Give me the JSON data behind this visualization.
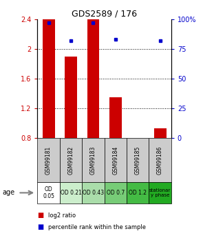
{
  "title": "GDS2589 / 176",
  "samples": [
    "GSM99181",
    "GSM99182",
    "GSM99183",
    "GSM99184",
    "GSM99185",
    "GSM99186"
  ],
  "log2_ratios": [
    2.4,
    1.9,
    2.4,
    1.35,
    0.8,
    0.93
  ],
  "percentile_ranks": [
    97,
    82,
    97,
    83,
    0,
    82
  ],
  "age_labels": [
    "OD\n0.05",
    "OD 0.21",
    "OD 0.43",
    "OD 0.7",
    "OD 1.2",
    "stationar\ny phase"
  ],
  "age_colors": [
    "#ffffff",
    "#cceecc",
    "#aaddaa",
    "#77cc77",
    "#44bb44",
    "#22aa22"
  ],
  "bar_color": "#cc0000",
  "dot_color": "#0000cc",
  "ylim_left": [
    0.8,
    2.4
  ],
  "ylim_right": [
    0,
    100
  ],
  "yticks_left": [
    0.8,
    1.2,
    1.6,
    2.0,
    2.4
  ],
  "yticks_right": [
    0,
    25,
    50,
    75,
    100
  ],
  "ytick_labels_left": [
    "0.8",
    "1.2",
    "1.6",
    "2",
    "2.4"
  ],
  "ytick_labels_right": [
    "0",
    "25",
    "50",
    "75",
    "100%"
  ],
  "dotted_lines": [
    1.2,
    1.6,
    2.0
  ],
  "legend_items": [
    "log2 ratio",
    "percentile rank within the sample"
  ],
  "header_bg": "#cccccc",
  "bar_width": 0.55
}
